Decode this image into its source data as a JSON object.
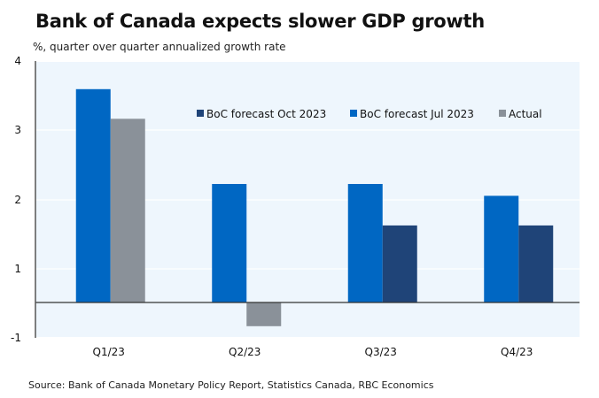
{
  "title": "Bank of Canada expects slower GDP growth",
  "subtitle": "%, quarter over quarter annualized growth rate",
  "source": "Source: Bank of Canada Monetary Policy Report, Statistics Canada, RBC Economics",
  "colors": {
    "plot_bg": "#eef6fd",
    "oct": "#1f4478",
    "jul": "#0067c3",
    "actual": "#8a9199",
    "axis": "#333333"
  },
  "chart_data": {
    "type": "bar",
    "title": "Bank of Canada expects slower GDP growth",
    "subtitle": "%, quarter over quarter annualized growth rate",
    "xlabel": "",
    "ylabel": "%",
    "categories": [
      "Q1/23",
      "Q2/23",
      "Q3/23",
      "Q4/23"
    ],
    "y_tick_labels": [
      "4",
      "3",
      "2",
      "1",
      "-1"
    ],
    "ylim": [
      -1,
      4
    ],
    "grid": true,
    "legend_position": "top-right",
    "series": [
      {
        "name": "BoC forecast Oct 2023",
        "color": "#1f4478",
        "values": [
          null,
          null,
          1.3,
          1.3
        ]
      },
      {
        "name": "BoC forecast Jul 2023",
        "color": "#0067c3",
        "values": [
          3.6,
          2.0,
          2.0,
          1.8
        ]
      },
      {
        "name": "Actual",
        "color": "#8a9199",
        "values": [
          3.1,
          -0.4,
          null,
          null
        ]
      }
    ]
  }
}
